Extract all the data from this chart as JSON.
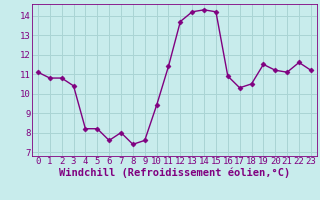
{
  "hours": [
    0,
    1,
    2,
    3,
    4,
    5,
    6,
    7,
    8,
    9,
    10,
    11,
    12,
    13,
    14,
    15,
    16,
    17,
    18,
    19,
    20,
    21,
    22,
    23
  ],
  "values": [
    11.1,
    10.8,
    10.8,
    10.4,
    8.2,
    8.2,
    7.6,
    8.0,
    7.4,
    7.6,
    9.4,
    11.4,
    13.7,
    14.2,
    14.3,
    14.2,
    10.9,
    10.3,
    10.5,
    11.5,
    11.2,
    11.1,
    11.6,
    11.2
  ],
  "line_color": "#800080",
  "marker": "D",
  "marker_size": 2.5,
  "bg_color": "#c8ecec",
  "grid_color": "#aad4d4",
  "xlabel": "Windchill (Refroidissement éolien,°C)",
  "xlabel_fontsize": 7.5,
  "tick_fontsize": 6.5,
  "ylim": [
    6.8,
    14.6
  ],
  "yticks": [
    7,
    8,
    9,
    10,
    11,
    12,
    13,
    14
  ],
  "xlim": [
    -0.5,
    23.5
  ],
  "xticks": [
    0,
    1,
    2,
    3,
    4,
    5,
    6,
    7,
    8,
    9,
    10,
    11,
    12,
    13,
    14,
    15,
    16,
    17,
    18,
    19,
    20,
    21,
    22,
    23
  ]
}
